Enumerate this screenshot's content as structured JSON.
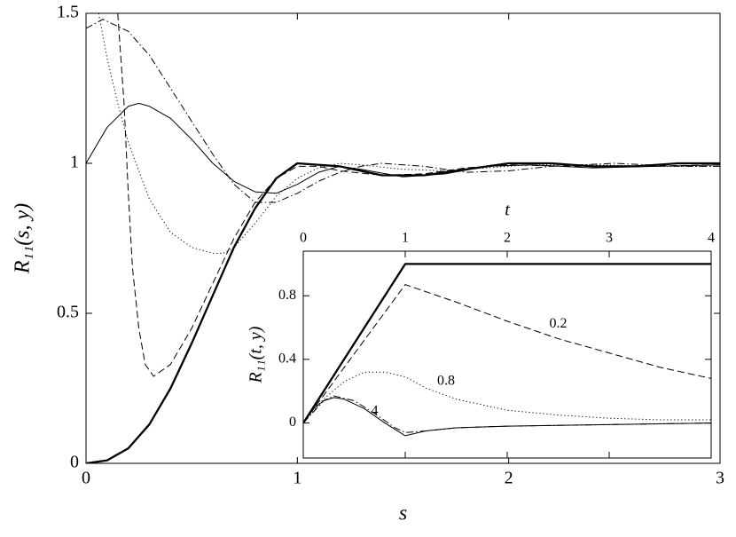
{
  "chart_data": [
    {
      "type": "line",
      "xlabel": "s",
      "ylabel": "R₁₁(s, y)",
      "xlim": [
        0,
        3
      ],
      "ylim": [
        0,
        1.5
      ],
      "xticks": [
        0,
        1,
        2,
        3
      ],
      "yticks": [
        0,
        0.5,
        1,
        1.5
      ],
      "series": [
        {
          "color": "#000",
          "style": "thick",
          "x": [
            0,
            0.1,
            0.2,
            0.3,
            0.4,
            0.5,
            0.6,
            0.7,
            0.8,
            0.9,
            1,
            1.2,
            1.4,
            1.6,
            1.8,
            2,
            2.2,
            2.4,
            2.6,
            2.8,
            3
          ],
          "values": [
            0,
            0.01,
            0.05,
            0.13,
            0.25,
            0.4,
            0.56,
            0.72,
            0.85,
            0.95,
            1.0,
            0.99,
            0.96,
            0.96,
            0.98,
            1.0,
            1.0,
            0.99,
            0.99,
            1.0,
            1.0
          ]
        },
        {
          "color": "#000",
          "style": "solid",
          "x": [
            0,
            0.1,
            0.2,
            0.25,
            0.3,
            0.4,
            0.5,
            0.6,
            0.7,
            0.8,
            0.9,
            1.0,
            1.1,
            1.2,
            1.3,
            1.5,
            1.7,
            1.9,
            2.1,
            2.4,
            2.7,
            3
          ],
          "values": [
            1.0,
            1.12,
            1.19,
            1.2,
            1.19,
            1.15,
            1.08,
            1.0,
            0.94,
            0.905,
            0.9,
            0.93,
            0.97,
            0.99,
            0.98,
            0.955,
            0.965,
            0.99,
            0.995,
            0.985,
            0.99,
            0.995
          ]
        },
        {
          "color": "#000",
          "style": "dashed",
          "x": [
            0.15,
            0.18,
            0.2,
            0.22,
            0.25,
            0.28,
            0.32,
            0.4,
            0.5,
            0.6,
            0.7,
            0.8,
            0.9,
            1.0,
            1.1,
            1.2,
            1.4,
            1.6,
            1.8,
            2,
            2.3,
            2.6,
            3
          ],
          "values": [
            1.5,
            1.2,
            0.9,
            0.65,
            0.45,
            0.33,
            0.29,
            0.33,
            0.45,
            0.6,
            0.75,
            0.87,
            0.95,
            0.99,
            0.99,
            0.975,
            0.96,
            0.965,
            0.985,
            0.995,
            0.99,
            0.99,
            0.995
          ]
        },
        {
          "color": "#000",
          "style": "dotted",
          "x": [
            0.06,
            0.1,
            0.15,
            0.2,
            0.3,
            0.4,
            0.5,
            0.6,
            0.65,
            0.7,
            0.8,
            0.9,
            1.0,
            1.1,
            1.2,
            1.3,
            1.5,
            1.7,
            1.9,
            2.1,
            2.4,
            2.7,
            3
          ],
          "values": [
            1.5,
            1.35,
            1.2,
            1.07,
            0.88,
            0.77,
            0.72,
            0.7,
            0.7,
            0.72,
            0.8,
            0.89,
            0.95,
            0.985,
            1.0,
            0.995,
            0.98,
            0.975,
            0.985,
            0.995,
            0.995,
            0.99,
            0.99
          ]
        },
        {
          "color": "#000",
          "style": "dashdot",
          "x": [
            0,
            0.08,
            0.2,
            0.3,
            0.4,
            0.5,
            0.6,
            0.7,
            0.8,
            0.9,
            1.0,
            1.1,
            1.2,
            1.3,
            1.4,
            1.6,
            1.8,
            2.0,
            2.2,
            2.5,
            2.8,
            3
          ],
          "values": [
            1.45,
            1.48,
            1.44,
            1.36,
            1.25,
            1.14,
            1.03,
            0.93,
            0.87,
            0.87,
            0.9,
            0.94,
            0.97,
            0.99,
            1.0,
            0.99,
            0.97,
            0.975,
            0.99,
            1.0,
            0.99,
            0.99
          ]
        }
      ]
    },
    {
      "type": "line",
      "xlabel": "t",
      "ylabel": "R₁₁(t, y)",
      "xlim": [
        0,
        4
      ],
      "ylim": [
        -0.22,
        1.08
      ],
      "xticks": [
        0,
        1,
        2,
        3,
        4
      ],
      "yticks": [
        0,
        0.4,
        0.8
      ],
      "annotations": [
        "0.2",
        "0.8",
        "4"
      ],
      "series": [
        {
          "color": "#000",
          "style": "thick",
          "x": [
            0,
            1,
            4
          ],
          "values": [
            0,
            1,
            1
          ]
        },
        {
          "color": "#000",
          "style": "dashed",
          "x": [
            0,
            1,
            1.5,
            2,
            2.5,
            3,
            3.5,
            4
          ],
          "values": [
            0,
            0.87,
            0.76,
            0.64,
            0.53,
            0.44,
            0.35,
            0.28
          ]
        },
        {
          "color": "#000",
          "style": "dotted",
          "x": [
            0,
            0.2,
            0.4,
            0.6,
            0.8,
            1.0,
            1.2,
            1.5,
            2,
            2.5,
            3,
            3.5,
            4
          ],
          "values": [
            0,
            0.15,
            0.26,
            0.32,
            0.32,
            0.29,
            0.22,
            0.15,
            0.08,
            0.05,
            0.03,
            0.02,
            0.02
          ]
        },
        {
          "color": "#000",
          "style": "dashdot",
          "x": [
            0,
            0.2,
            0.3,
            0.5,
            0.7,
            0.9,
            1,
            1.2,
            1.5,
            2,
            3,
            4
          ],
          "values": [
            0,
            0.14,
            0.17,
            0.14,
            0.06,
            -0.03,
            -0.06,
            -0.05,
            -0.03,
            -0.02,
            -0.01,
            0
          ]
        },
        {
          "color": "#000",
          "style": "solid",
          "x": [
            0,
            0.1,
            0.2,
            0.3,
            0.4,
            0.6,
            0.8,
            1.0,
            1.2,
            1.5,
            2,
            3,
            4
          ],
          "values": [
            0,
            0.09,
            0.14,
            0.16,
            0.15,
            0.09,
            0.0,
            -0.08,
            -0.05,
            -0.03,
            -0.02,
            -0.01,
            0
          ]
        }
      ]
    }
  ]
}
